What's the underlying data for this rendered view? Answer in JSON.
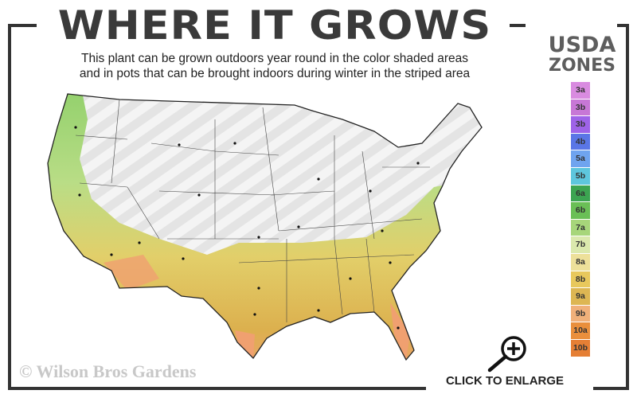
{
  "header": {
    "title": "WHERE IT GROWS",
    "subtitle_line1": "This plant can be grown outdoors year round in the color shaded areas",
    "subtitle_line2": "and in pots that can be brought indoors during winter in the striped area"
  },
  "legend": {
    "title_line1": "USDA",
    "title_line2": "ZONES",
    "zones": [
      {
        "label": "3a",
        "color": "#d98be0"
      },
      {
        "label": "3b",
        "color": "#c777d6"
      },
      {
        "label": "3b",
        "color": "#9e63e8"
      },
      {
        "label": "4b",
        "color": "#5a76e6"
      },
      {
        "label": "5a",
        "color": "#6fa4ef"
      },
      {
        "label": "5b",
        "color": "#5ec6dd"
      },
      {
        "label": "6a",
        "color": "#3ca451"
      },
      {
        "label": "6b",
        "color": "#6abf56"
      },
      {
        "label": "7a",
        "color": "#a7d67a"
      },
      {
        "label": "7b",
        "color": "#dbe9ad"
      },
      {
        "label": "8a",
        "color": "#ede09a"
      },
      {
        "label": "8b",
        "color": "#e8c85c"
      },
      {
        "label": "9a",
        "color": "#ddb653"
      },
      {
        "label": "9b",
        "color": "#f0b07a"
      },
      {
        "label": "10a",
        "color": "#e98f3c"
      },
      {
        "label": "10b",
        "color": "#e57f35"
      }
    ]
  },
  "footer": {
    "copyright": "© Wilson Bros Gardens",
    "enlarge_label": "CLICK TO ENLARGE",
    "enlarge_icon": "zoom-in-magnifier-icon"
  }
}
